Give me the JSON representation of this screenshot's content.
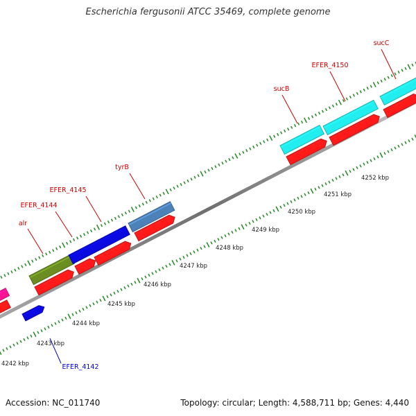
{
  "title": "Escherichia fergusonii ATCC 35469, complete genome",
  "footer": {
    "accession": "Accession: NC_011740",
    "summary": "Topology: circular; Length: 4,588,711 bp; Genes: 4,440"
  },
  "colors": {
    "backbone": "#8a8a8a",
    "tick": "#2e8b2e",
    "label_red": "#cc0000",
    "label_blue": "#0000cc",
    "cds_red": "#ff1a1a",
    "cds_blue": "#0a0ae0",
    "cds_cyan": "#22eef0",
    "cds_olive": "#6b8e23",
    "cds_steel": "#4d82b8",
    "cds_pink": "#ff1493"
  },
  "scale_labels": [
    "4242 kbp",
    "4243 kbp",
    "4244 kbp",
    "4245 kbp",
    "4246 kbp",
    "4247 kbp",
    "4248 kbp",
    "4249 kbp",
    "4250 kbp",
    "4251 kbp",
    "4252 kbp"
  ],
  "gene_labels": [
    {
      "text": "alr",
      "color": "red"
    },
    {
      "text": "EFER_4144",
      "color": "red"
    },
    {
      "text": "EFER_4145",
      "color": "red"
    },
    {
      "text": "tyrB",
      "color": "red"
    },
    {
      "text": "sucB",
      "color": "red"
    },
    {
      "text": "EFER_4150",
      "color": "red"
    },
    {
      "text": "sucC",
      "color": "red"
    },
    {
      "text": "EFER_4142",
      "color": "blue"
    }
  ]
}
